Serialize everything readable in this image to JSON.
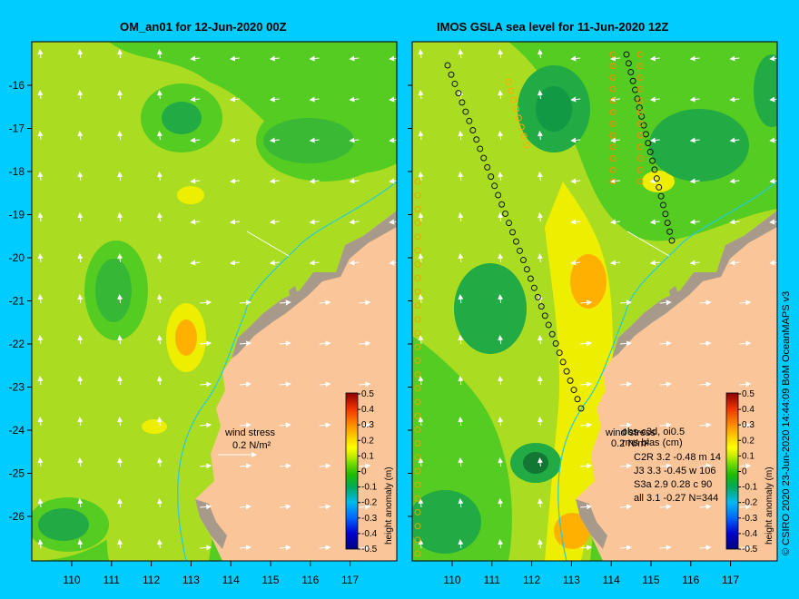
{
  "panels": {
    "left_title": "OM_an01 for 12-Jun-2020 00Z",
    "right_title": "IMOS GSLA sea level  for 11-Jun-2020 12Z"
  },
  "axes": {
    "x_ticks": [
      "110",
      "111",
      "112",
      "113",
      "114",
      "115",
      "116",
      "117"
    ],
    "y_ticks": [
      "-16",
      "-17",
      "-18",
      "-19",
      "-20",
      "-21",
      "-22",
      "-23",
      "-24",
      "-25",
      "-26"
    ]
  },
  "colorbar": {
    "label": "height anomaly (m)",
    "ticks": [
      "0.5",
      "0.4",
      "0.3",
      "0.2",
      "0.1",
      "0",
      "-0.1",
      "-0.2",
      "-0.3",
      "-0.4",
      "-0.5"
    ],
    "colors": [
      "#000080",
      "#0000cc",
      "#0044ff",
      "#0099ff",
      "#00cccc",
      "#00aa00",
      "#33cc00",
      "#66dd00",
      "#99ee00",
      "#ccee00",
      "#ffff00",
      "#ffcc00",
      "#ff9900",
      "#ff6600",
      "#ee3300",
      "#cc0000",
      "#880000"
    ]
  },
  "left_panel": {
    "wind_label": "wind stress",
    "wind_value": "0.2 N/m²"
  },
  "right_panel": {
    "wind_label": "wind stress",
    "wind_value": "0.2 N/m²",
    "overlay_line1": "obs-c3d, oi0.5",
    "overlay_line2": "rms bias (cm)",
    "stats": [
      "C2R   3.2 -0.48 m 14",
      "J3     3.3 -0.45 w 106",
      "S3a   2.9 0.28 c 90",
      "all    3.1 -0.27 N=344"
    ]
  },
  "credit": "© CSIRO 2020   23-Jun-2020 14:44:09 BoM OceanMAPS v3",
  "colors": {
    "background": "#00ccff",
    "land": "#fbc59a",
    "coast": "#a89a8a",
    "green_dark": "#22aa44",
    "green": "#55cc22",
    "yellow_green": "#aadd22",
    "yellow": "#eeee00",
    "orange": "#ffb000"
  }
}
